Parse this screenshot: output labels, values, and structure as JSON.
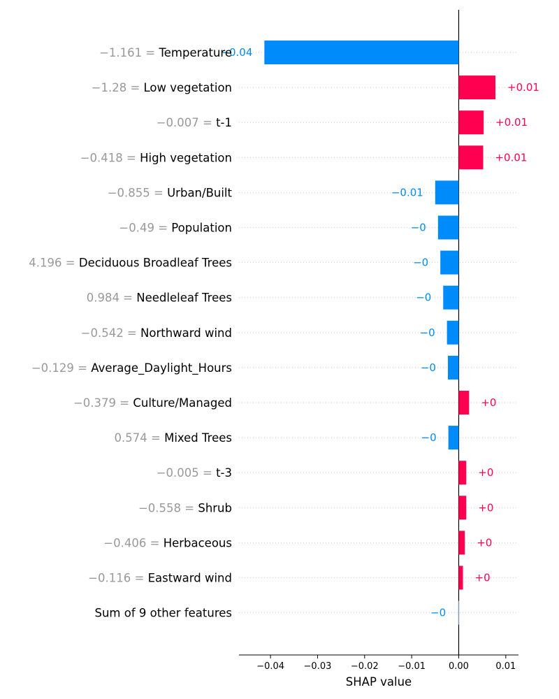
{
  "chart_data": {
    "type": "bar",
    "orientation": "horizontal",
    "xlabel": "SHAP value",
    "xlim": [
      -0.0467,
      0.0127
    ],
    "xticks": [
      {
        "value": -0.04,
        "label": "−0.04"
      },
      {
        "value": -0.03,
        "label": "−0.03"
      },
      {
        "value": -0.02,
        "label": "−0.02"
      },
      {
        "value": -0.01,
        "label": "−0.01"
      },
      {
        "value": 0.0,
        "label": "0.00"
      },
      {
        "value": 0.01,
        "label": "0.01"
      }
    ],
    "gridlines": "horizontal-dotted",
    "colors": {
      "positive": "#ff0051",
      "negative": "#008bfb",
      "feature_value": "#999999",
      "other": "#cfe6fb"
    },
    "features": [
      {
        "value_text": "−1.161",
        "name": "Temperature",
        "shap": -0.0413,
        "label": "−0.04"
      },
      {
        "value_text": "−1.28",
        "name": "Low vegetation",
        "shap": 0.0078,
        "label": "+0.01"
      },
      {
        "value_text": "−0.007",
        "name": "t-1",
        "shap": 0.0053,
        "label": "+0.01"
      },
      {
        "value_text": "−0.418",
        "name": "High vegetation",
        "shap": 0.0052,
        "label": "+0.01"
      },
      {
        "value_text": "−0.855",
        "name": "Urban/Built",
        "shap": -0.005,
        "label": "−0.01"
      },
      {
        "value_text": "−0.49",
        "name": "Population",
        "shap": -0.0044,
        "label": "−0"
      },
      {
        "value_text": "4.196",
        "name": "Deciduous Broadleaf Trees",
        "shap": -0.0039,
        "label": "−0"
      },
      {
        "value_text": "0.984",
        "name": "Needleleaf Trees",
        "shap": -0.0033,
        "label": "−0"
      },
      {
        "value_text": "−0.542",
        "name": "Northward wind",
        "shap": -0.0025,
        "label": "−0"
      },
      {
        "value_text": "−0.129",
        "name": "Average_Daylight_Hours",
        "shap": -0.0023,
        "label": "−0"
      },
      {
        "value_text": "−0.379",
        "name": "Culture/Managed",
        "shap": 0.0022,
        "label": "+0"
      },
      {
        "value_text": "0.574",
        "name": "Mixed Trees",
        "shap": -0.0022,
        "label": "−0"
      },
      {
        "value_text": "−0.005",
        "name": "t-3",
        "shap": 0.0016,
        "label": "+0"
      },
      {
        "value_text": "−0.558",
        "name": "Shrub",
        "shap": 0.0016,
        "label": "+0"
      },
      {
        "value_text": "−0.406",
        "name": "Herbaceous",
        "shap": 0.0013,
        "label": "+0"
      },
      {
        "value_text": "−0.116",
        "name": "Eastward wind",
        "shap": 0.0009,
        "label": "+0"
      },
      {
        "value_text": "",
        "name": "Sum of 9 other features",
        "shap": -0.0002,
        "label": "−0"
      }
    ]
  }
}
